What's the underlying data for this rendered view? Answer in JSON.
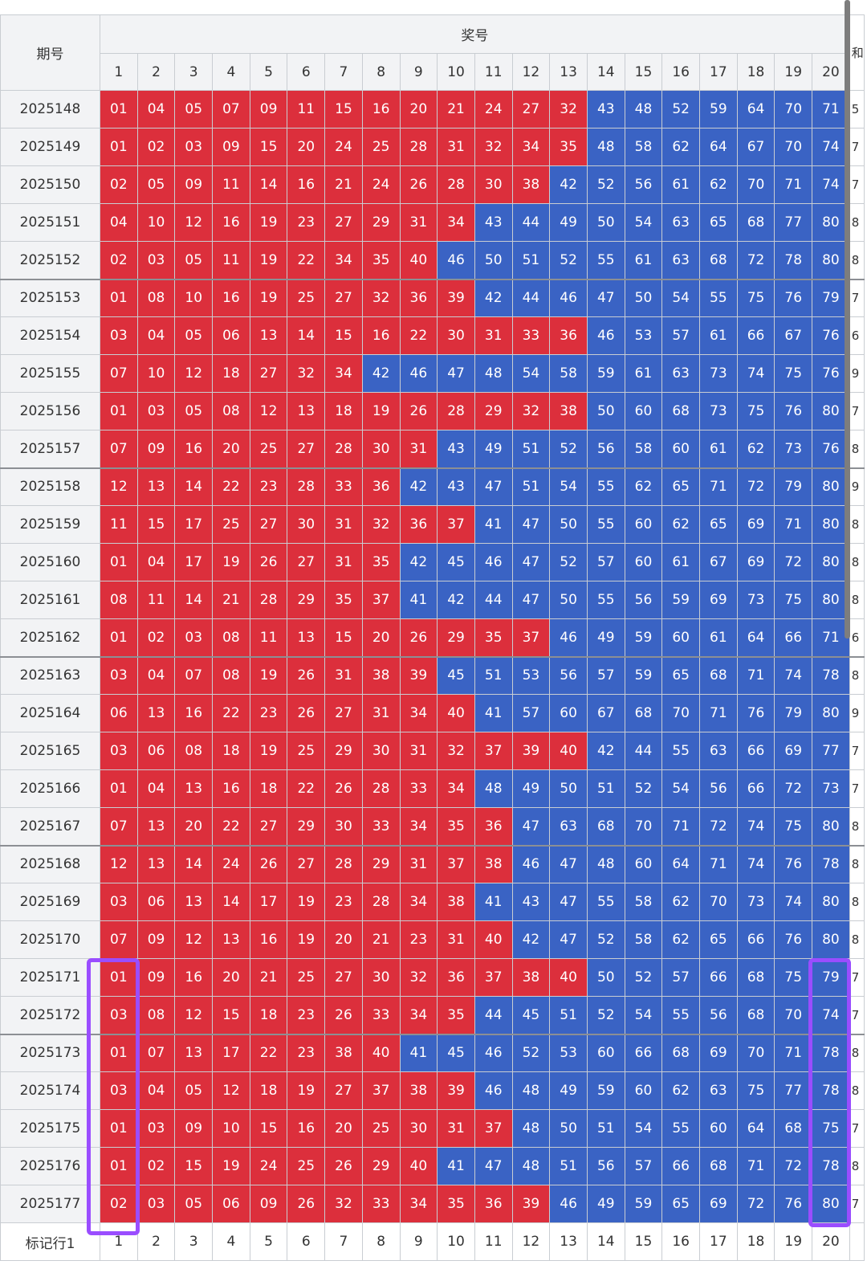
{
  "header": {
    "period_label": "期号",
    "numbers_label": "奖号",
    "edge_label": "和"
  },
  "columns": [
    "1",
    "2",
    "3",
    "4",
    "5",
    "6",
    "7",
    "8",
    "9",
    "10",
    "11",
    "12",
    "13",
    "14",
    "15",
    "16",
    "17",
    "18",
    "19",
    "20"
  ],
  "footer": {
    "label": "标记行1",
    "columns": [
      "1",
      "2",
      "3",
      "4",
      "5",
      "6",
      "7",
      "8",
      "9",
      "10",
      "11",
      "12",
      "13",
      "14",
      "15",
      "16",
      "17",
      "18",
      "19",
      "20"
    ]
  },
  "colors": {
    "red": "#dc2f3c",
    "blue": "#3a63c4",
    "mark": "#9a4dff"
  },
  "rows": [
    {
      "period": "2025148",
      "numbers": [
        "01",
        "04",
        "05",
        "07",
        "09",
        "11",
        "15",
        "16",
        "20",
        "21",
        "24",
        "27",
        "32",
        "43",
        "48",
        "52",
        "59",
        "64",
        "70",
        "71"
      ],
      "red_count": 13,
      "edge": "5"
    },
    {
      "period": "2025149",
      "numbers": [
        "01",
        "02",
        "03",
        "09",
        "15",
        "20",
        "24",
        "25",
        "28",
        "31",
        "32",
        "34",
        "35",
        "48",
        "58",
        "62",
        "64",
        "67",
        "70",
        "74"
      ],
      "red_count": 13,
      "edge": "7"
    },
    {
      "period": "2025150",
      "numbers": [
        "02",
        "05",
        "09",
        "11",
        "14",
        "16",
        "21",
        "24",
        "26",
        "28",
        "30",
        "38",
        "42",
        "52",
        "56",
        "61",
        "62",
        "70",
        "71",
        "74"
      ],
      "red_count": 12,
      "edge": "7"
    },
    {
      "period": "2025151",
      "numbers": [
        "04",
        "10",
        "12",
        "16",
        "19",
        "23",
        "27",
        "29",
        "31",
        "34",
        "43",
        "44",
        "49",
        "50",
        "54",
        "63",
        "65",
        "68",
        "77",
        "80"
      ],
      "red_count": 10,
      "edge": "8"
    },
    {
      "period": "2025152",
      "numbers": [
        "02",
        "03",
        "05",
        "11",
        "19",
        "22",
        "34",
        "35",
        "40",
        "46",
        "50",
        "51",
        "52",
        "55",
        "61",
        "63",
        "68",
        "72",
        "78",
        "80"
      ],
      "red_count": 9,
      "edge": "8",
      "group_end": true
    },
    {
      "period": "2025153",
      "numbers": [
        "01",
        "08",
        "10",
        "16",
        "19",
        "25",
        "27",
        "32",
        "36",
        "39",
        "42",
        "44",
        "46",
        "47",
        "50",
        "54",
        "55",
        "75",
        "76",
        "79"
      ],
      "red_count": 10,
      "edge": "7"
    },
    {
      "period": "2025154",
      "numbers": [
        "03",
        "04",
        "05",
        "06",
        "13",
        "14",
        "15",
        "16",
        "22",
        "30",
        "31",
        "33",
        "36",
        "46",
        "53",
        "57",
        "61",
        "66",
        "67",
        "76"
      ],
      "red_count": 13,
      "edge": "6"
    },
    {
      "period": "2025155",
      "numbers": [
        "07",
        "10",
        "12",
        "18",
        "27",
        "32",
        "34",
        "42",
        "46",
        "47",
        "48",
        "54",
        "58",
        "59",
        "61",
        "63",
        "73",
        "74",
        "75",
        "76"
      ],
      "red_count": 7,
      "edge": "9"
    },
    {
      "period": "2025156",
      "numbers": [
        "01",
        "03",
        "05",
        "08",
        "12",
        "13",
        "18",
        "19",
        "26",
        "28",
        "29",
        "32",
        "38",
        "50",
        "60",
        "68",
        "73",
        "75",
        "76",
        "80"
      ],
      "red_count": 13,
      "edge": "7"
    },
    {
      "period": "2025157",
      "numbers": [
        "07",
        "09",
        "16",
        "20",
        "25",
        "27",
        "28",
        "30",
        "31",
        "43",
        "49",
        "51",
        "52",
        "56",
        "58",
        "60",
        "61",
        "62",
        "73",
        "76"
      ],
      "red_count": 9,
      "edge": "8",
      "group_end": true
    },
    {
      "period": "2025158",
      "numbers": [
        "12",
        "13",
        "14",
        "22",
        "23",
        "28",
        "33",
        "36",
        "42",
        "43",
        "47",
        "51",
        "54",
        "55",
        "62",
        "65",
        "71",
        "72",
        "79",
        "80"
      ],
      "red_count": 8,
      "edge": "9"
    },
    {
      "period": "2025159",
      "numbers": [
        "11",
        "15",
        "17",
        "25",
        "27",
        "30",
        "31",
        "32",
        "36",
        "37",
        "41",
        "47",
        "50",
        "55",
        "60",
        "62",
        "65",
        "69",
        "71",
        "80"
      ],
      "red_count": 10,
      "edge": "8"
    },
    {
      "period": "2025160",
      "numbers": [
        "01",
        "04",
        "17",
        "19",
        "26",
        "27",
        "31",
        "35",
        "42",
        "45",
        "46",
        "47",
        "52",
        "57",
        "60",
        "61",
        "67",
        "69",
        "72",
        "80"
      ],
      "red_count": 8,
      "edge": "8"
    },
    {
      "period": "2025161",
      "numbers": [
        "08",
        "11",
        "14",
        "21",
        "28",
        "29",
        "35",
        "37",
        "41",
        "42",
        "44",
        "47",
        "50",
        "55",
        "56",
        "59",
        "69",
        "73",
        "75",
        "80"
      ],
      "red_count": 8,
      "edge": "8"
    },
    {
      "period": "2025162",
      "numbers": [
        "01",
        "02",
        "03",
        "08",
        "11",
        "13",
        "15",
        "20",
        "26",
        "29",
        "35",
        "37",
        "46",
        "49",
        "59",
        "60",
        "61",
        "64",
        "66",
        "71"
      ],
      "red_count": 12,
      "edge": "6",
      "group_end": true
    },
    {
      "period": "2025163",
      "numbers": [
        "03",
        "04",
        "07",
        "08",
        "19",
        "26",
        "31",
        "38",
        "39",
        "45",
        "51",
        "53",
        "56",
        "57",
        "59",
        "65",
        "68",
        "71",
        "74",
        "78"
      ],
      "red_count": 9,
      "edge": "8"
    },
    {
      "period": "2025164",
      "numbers": [
        "06",
        "13",
        "16",
        "22",
        "23",
        "26",
        "27",
        "31",
        "34",
        "40",
        "41",
        "57",
        "60",
        "67",
        "68",
        "70",
        "71",
        "76",
        "79",
        "80"
      ],
      "red_count": 10,
      "edge": "9"
    },
    {
      "period": "2025165",
      "numbers": [
        "03",
        "06",
        "08",
        "18",
        "19",
        "25",
        "29",
        "30",
        "31",
        "32",
        "37",
        "39",
        "40",
        "42",
        "44",
        "55",
        "63",
        "66",
        "69",
        "77"
      ],
      "red_count": 13,
      "edge": "7"
    },
    {
      "period": "2025166",
      "numbers": [
        "01",
        "04",
        "13",
        "16",
        "18",
        "22",
        "26",
        "28",
        "33",
        "34",
        "48",
        "49",
        "50",
        "51",
        "52",
        "54",
        "56",
        "66",
        "72",
        "73"
      ],
      "red_count": 10,
      "edge": "7"
    },
    {
      "period": "2025167",
      "numbers": [
        "07",
        "13",
        "20",
        "22",
        "27",
        "29",
        "30",
        "33",
        "34",
        "35",
        "36",
        "47",
        "63",
        "68",
        "70",
        "71",
        "72",
        "74",
        "75",
        "80"
      ],
      "red_count": 11,
      "edge": "8",
      "group_end": true
    },
    {
      "period": "2025168",
      "numbers": [
        "12",
        "13",
        "14",
        "24",
        "26",
        "27",
        "28",
        "29",
        "31",
        "37",
        "38",
        "46",
        "47",
        "48",
        "60",
        "64",
        "71",
        "74",
        "76",
        "78"
      ],
      "red_count": 11,
      "edge": "8"
    },
    {
      "period": "2025169",
      "numbers": [
        "03",
        "06",
        "13",
        "14",
        "17",
        "19",
        "23",
        "28",
        "34",
        "38",
        "41",
        "43",
        "47",
        "55",
        "58",
        "62",
        "70",
        "73",
        "74",
        "80"
      ],
      "red_count": 10,
      "edge": "8"
    },
    {
      "period": "2025170",
      "numbers": [
        "07",
        "09",
        "12",
        "13",
        "16",
        "19",
        "20",
        "21",
        "23",
        "31",
        "40",
        "42",
        "47",
        "52",
        "58",
        "62",
        "65",
        "66",
        "76",
        "80"
      ],
      "red_count": 11,
      "edge": "8"
    },
    {
      "period": "2025171",
      "numbers": [
        "01",
        "09",
        "16",
        "20",
        "21",
        "25",
        "27",
        "30",
        "32",
        "36",
        "37",
        "38",
        "40",
        "50",
        "52",
        "57",
        "66",
        "68",
        "75",
        "79"
      ],
      "red_count": 13,
      "edge": "7"
    },
    {
      "period": "2025172",
      "numbers": [
        "03",
        "08",
        "12",
        "15",
        "18",
        "23",
        "26",
        "33",
        "34",
        "35",
        "44",
        "45",
        "51",
        "52",
        "54",
        "55",
        "56",
        "68",
        "70",
        "74"
      ],
      "red_count": 10,
      "edge": "7",
      "group_end": true
    },
    {
      "period": "2025173",
      "numbers": [
        "01",
        "07",
        "13",
        "17",
        "22",
        "23",
        "38",
        "40",
        "41",
        "45",
        "46",
        "52",
        "53",
        "60",
        "66",
        "68",
        "69",
        "70",
        "71",
        "78"
      ],
      "red_count": 8,
      "edge": "8"
    },
    {
      "period": "2025174",
      "numbers": [
        "03",
        "04",
        "05",
        "12",
        "18",
        "19",
        "27",
        "37",
        "38",
        "39",
        "46",
        "48",
        "49",
        "59",
        "60",
        "62",
        "63",
        "75",
        "77",
        "78"
      ],
      "red_count": 10,
      "edge": "8"
    },
    {
      "period": "2025175",
      "numbers": [
        "01",
        "03",
        "09",
        "10",
        "15",
        "16",
        "20",
        "25",
        "30",
        "31",
        "37",
        "48",
        "50",
        "51",
        "54",
        "55",
        "60",
        "64",
        "68",
        "75"
      ],
      "red_count": 11,
      "edge": "7"
    },
    {
      "period": "2025176",
      "numbers": [
        "01",
        "02",
        "15",
        "19",
        "24",
        "25",
        "26",
        "29",
        "40",
        "41",
        "47",
        "48",
        "51",
        "56",
        "57",
        "66",
        "68",
        "71",
        "72",
        "78"
      ],
      "red_count": 9,
      "edge": "8"
    },
    {
      "period": "2025177",
      "numbers": [
        "02",
        "03",
        "05",
        "06",
        "09",
        "26",
        "32",
        "33",
        "34",
        "35",
        "36",
        "39",
        "46",
        "49",
        "59",
        "65",
        "69",
        "72",
        "76",
        "80"
      ],
      "red_count": 12,
      "edge": "7"
    }
  ]
}
